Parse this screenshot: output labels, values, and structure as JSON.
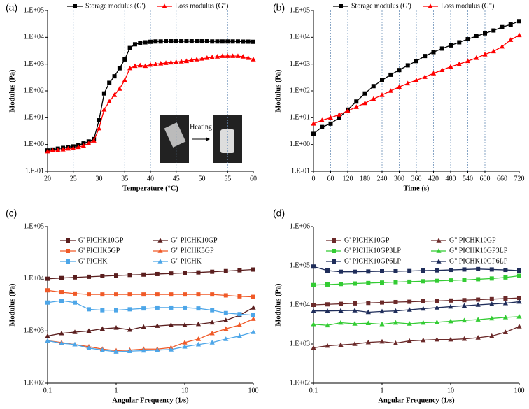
{
  "chart_data": [
    {
      "type": "line",
      "panel_label": "(a)",
      "xlabel": "Temperature (°C)",
      "ylabel": "Modulus (Pa)",
      "annotation": "Heating",
      "legend": "top",
      "grid_x": true,
      "ylog": true,
      "xlog": false,
      "xlim": [
        20,
        60
      ],
      "xticks": [
        20,
        25,
        30,
        35,
        40,
        45,
        50,
        55,
        60
      ],
      "ylim": [
        0.1,
        100000
      ],
      "yticks": [
        {
          "value": 0.1,
          "label": "1.E-01"
        },
        {
          "value": 1,
          "label": "1.E+00"
        },
        {
          "value": 10,
          "label": "1.E+01"
        },
        {
          "value": 100,
          "label": "1.E+02"
        },
        {
          "value": 1000,
          "label": "1.E+03"
        },
        {
          "value": 10000,
          "label": "1.E+04"
        },
        {
          "value": 100000,
          "label": "1.E+05"
        }
      ],
      "x": [
        20,
        21,
        22,
        23,
        24,
        25,
        26,
        27,
        28,
        29,
        30,
        31,
        32,
        33,
        34,
        35,
        36,
        37,
        38,
        39,
        40,
        41,
        42,
        43,
        44,
        45,
        46,
        47,
        48,
        49,
        50,
        51,
        52,
        53,
        54,
        55,
        56,
        57,
        58,
        59,
        60
      ],
      "series": [
        {
          "name": "Storage modulus (G')",
          "color": "#000000",
          "marker": "square",
          "values": [
            0.6,
            0.65,
            0.7,
            0.75,
            0.8,
            0.85,
            0.95,
            1.1,
            1.3,
            1.6,
            8,
            80,
            200,
            350,
            700,
            1500,
            4000,
            5500,
            6000,
            6500,
            6800,
            7000,
            7000,
            7100,
            7100,
            7100,
            7100,
            7100,
            7100,
            7100,
            7100,
            7100,
            7000,
            7000,
            7000,
            7000,
            7000,
            7000,
            6900,
            6900,
            6800
          ]
        },
        {
          "name": "Loss modulus (G\")",
          "color": "#ff0000",
          "marker": "triangle",
          "values": [
            0.55,
            0.6,
            0.62,
            0.65,
            0.7,
            0.72,
            0.8,
            0.9,
            1.1,
            1.4,
            4,
            20,
            40,
            70,
            120,
            250,
            700,
            850,
            900,
            850,
            950,
            1000,
            1050,
            1100,
            1150,
            1200,
            1250,
            1300,
            1400,
            1500,
            1600,
            1700,
            1800,
            1900,
            2000,
            2000,
            2000,
            2000,
            1900,
            1700,
            1500
          ]
        }
      ]
    },
    {
      "type": "line",
      "panel_label": "(b)",
      "xlabel": "Time (s)",
      "ylabel": "Modulus (Pa)",
      "legend": "top",
      "grid_x": true,
      "ylog": true,
      "xlog": false,
      "xlim": [
        0,
        720
      ],
      "xticks": [
        0,
        60,
        120,
        180,
        240,
        300,
        360,
        420,
        480,
        540,
        600,
        660,
        720
      ],
      "ylim": [
        0.1,
        100000
      ],
      "yticks": [
        {
          "value": 0.1,
          "label": "1.E-01"
        },
        {
          "value": 1,
          "label": "1.E+00"
        },
        {
          "value": 10,
          "label": "1.E+01"
        },
        {
          "value": 100,
          "label": "1.E+02"
        },
        {
          "value": 1000,
          "label": "1.E+03"
        },
        {
          "value": 10000,
          "label": "1.E+04"
        },
        {
          "value": 100000,
          "label": "1.E+05"
        }
      ],
      "x": [
        0,
        30,
        60,
        90,
        120,
        150,
        180,
        210,
        240,
        270,
        300,
        330,
        360,
        390,
        420,
        450,
        480,
        510,
        540,
        570,
        600,
        630,
        660,
        690,
        720
      ],
      "series": [
        {
          "name": "Storage modulus (G')",
          "color": "#000000",
          "marker": "square",
          "values": [
            2.5,
            4.5,
            6,
            10,
            20,
            40,
            80,
            150,
            250,
            400,
            600,
            900,
            1300,
            2000,
            2800,
            3800,
            5000,
            6500,
            8500,
            11000,
            14000,
            18000,
            24000,
            30000,
            40000
          ]
        },
        {
          "name": "Loss modulus (G\")",
          "color": "#ff0000",
          "marker": "triangle",
          "values": [
            6,
            8,
            10,
            13,
            18,
            25,
            35,
            50,
            70,
            100,
            140,
            190,
            250,
            330,
            450,
            600,
            800,
            1000,
            1300,
            1700,
            2300,
            3000,
            4500,
            8000,
            12000
          ]
        }
      ]
    },
    {
      "type": "line",
      "panel_label": "(c)",
      "xlabel": "Angular Frequency (1/s)",
      "ylabel": "Modulus (Pa)",
      "legend": "upper left",
      "grid_x": false,
      "ylog": true,
      "xlog": true,
      "xlim": [
        0.1,
        100
      ],
      "xticks": [
        0.1,
        1,
        10,
        100
      ],
      "ylim": [
        100,
        100000
      ],
      "yticks": [
        {
          "value": 100,
          "label": "1.E+02"
        },
        {
          "value": 1000,
          "label": "1.E+03"
        },
        {
          "value": 10000,
          "label": "1.E+04"
        },
        {
          "value": 100000,
          "label": "1.E+05"
        }
      ],
      "x": [
        0.1,
        0.16,
        0.25,
        0.4,
        0.63,
        1,
        1.58,
        2.51,
        3.98,
        6.31,
        10,
        15.8,
        25.1,
        39.8,
        63.1,
        100
      ],
      "series": [
        {
          "name": "G' PICHK10GP",
          "color": "#5a1e1e",
          "marker": "square",
          "values": [
            10000,
            10300,
            10600,
            10900,
            11200,
            11500,
            11800,
            12000,
            12300,
            12600,
            12900,
            13200,
            13600,
            14000,
            14500,
            15000
          ]
        },
        {
          "name": "G\" PICHK10GP",
          "color": "#5a1e1e",
          "marker": "triangle",
          "values": [
            800,
            900,
            950,
            1000,
            1100,
            1150,
            1050,
            1200,
            1250,
            1300,
            1300,
            1350,
            1450,
            1600,
            2000,
            2800
          ]
        },
        {
          "name": "G' PICHK5GP",
          "color": "#f05a28",
          "marker": "square",
          "values": [
            6000,
            5500,
            5200,
            5000,
            5000,
            5000,
            5000,
            5000,
            5000,
            5000,
            5000,
            5000,
            5000,
            4800,
            4600,
            4500
          ]
        },
        {
          "name": "G\" PICHK5GP",
          "color": "#f05a28",
          "marker": "triangle",
          "values": [
            650,
            600,
            550,
            500,
            450,
            420,
            430,
            450,
            450,
            480,
            600,
            700,
            900,
            1100,
            1300,
            1700
          ]
        },
        {
          "name": "G' PICHK",
          "color": "#4da6e8",
          "marker": "square",
          "values": [
            3500,
            3800,
            3500,
            2600,
            2500,
            2500,
            2600,
            2700,
            2800,
            2800,
            2800,
            2700,
            2500,
            2200,
            2100,
            2000
          ]
        },
        {
          "name": "G\" PICHK",
          "color": "#4da6e8",
          "marker": "triangle",
          "values": [
            650,
            580,
            550,
            470,
            430,
            400,
            410,
            420,
            430,
            440,
            500,
            550,
            600,
            700,
            800,
            950
          ]
        }
      ]
    },
    {
      "type": "line",
      "panel_label": "(d)",
      "xlabel": "Angular Frequency (1/s)",
      "ylabel": "Modulus (Pa)",
      "legend": "upper left",
      "grid_x": false,
      "ylog": true,
      "xlog": true,
      "xlim": [
        0.1,
        100
      ],
      "xticks": [
        0.1,
        1,
        10,
        100
      ],
      "ylim": [
        100,
        1000000
      ],
      "yticks": [
        {
          "value": 100,
          "label": "1.E+02"
        },
        {
          "value": 1000,
          "label": "1.E+03"
        },
        {
          "value": 10000,
          "label": "1.E+04"
        },
        {
          "value": 100000,
          "label": "1.E+05"
        },
        {
          "value": 1000000,
          "label": "1.E+06"
        }
      ],
      "x": [
        0.1,
        0.16,
        0.25,
        0.4,
        0.63,
        1,
        1.58,
        2.51,
        3.98,
        6.31,
        10,
        15.8,
        25.1,
        39.8,
        63.1,
        100
      ],
      "series": [
        {
          "name": "G' PICHK10GP",
          "color": "#6b2a2a",
          "marker": "square",
          "values": [
            10000,
            10300,
            10600,
            10900,
            11200,
            11500,
            11800,
            12000,
            12300,
            12600,
            12900,
            13200,
            13600,
            14000,
            14500,
            15000
          ]
        },
        {
          "name": "G\" PICHK10GP",
          "color": "#6b2a2a",
          "marker": "triangle",
          "values": [
            800,
            900,
            950,
            1000,
            1100,
            1150,
            1050,
            1200,
            1250,
            1300,
            1300,
            1350,
            1450,
            1600,
            2000,
            2800
          ]
        },
        {
          "name": "G' PICHK10GP3LP",
          "color": "#33cc33",
          "marker": "square",
          "values": [
            32000,
            33000,
            34000,
            35000,
            36000,
            37000,
            38000,
            39000,
            40000,
            41000,
            42000,
            43000,
            45000,
            47000,
            50000,
            55000
          ]
        },
        {
          "name": "G\" PICHK10GP3LP",
          "color": "#33cc33",
          "marker": "triangle",
          "values": [
            3200,
            3000,
            3500,
            3300,
            3400,
            3200,
            3500,
            3300,
            3500,
            3600,
            3800,
            4000,
            4200,
            4500,
            4800,
            5000
          ]
        },
        {
          "name": "G' PICHK10GP6LP",
          "color": "#1f2d5a",
          "marker": "square",
          "values": [
            95000,
            75000,
            70000,
            70000,
            71000,
            72000,
            72000,
            73000,
            75000,
            76000,
            78000,
            80000,
            82000,
            80000,
            78000,
            75000
          ]
        },
        {
          "name": "G\" PICHK10GP6LP",
          "color": "#1f2d5a",
          "marker": "triangle",
          "values": [
            7000,
            7000,
            7100,
            7200,
            6500,
            6800,
            7000,
            7500,
            8000,
            8500,
            9000,
            9500,
            10000,
            10500,
            11000,
            12000
          ]
        }
      ]
    }
  ]
}
